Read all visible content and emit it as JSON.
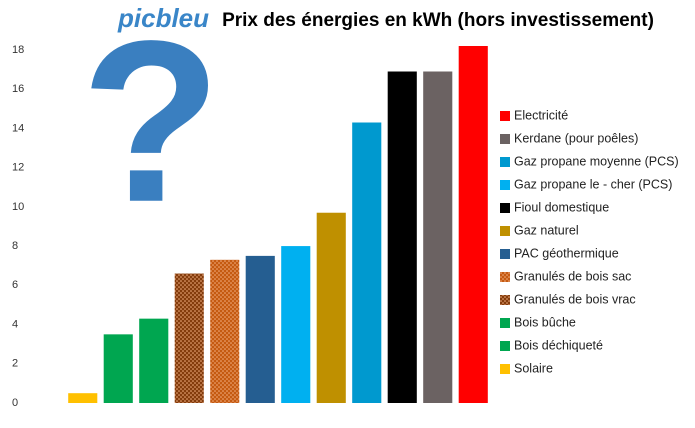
{
  "chart_data": {
    "type": "bar",
    "title": "Prix des énergies en kWh (hors investissement)",
    "logo": "picbleu",
    "annotation": "?",
    "categories": [
      null,
      null,
      null,
      null,
      null,
      null,
      null,
      null,
      null,
      null,
      null,
      null
    ],
    "ylim": [
      0,
      18.2
    ],
    "yticks": [
      0,
      2,
      4,
      6,
      8,
      10,
      12,
      14,
      16,
      18
    ],
    "grid": false,
    "legend": "right",
    "series": [
      {
        "name": "Electricité",
        "color": "#ff0000",
        "values": [
          null,
          null,
          null,
          null,
          null,
          null,
          null,
          null,
          null,
          null,
          null,
          18.2
        ]
      },
      {
        "name": "Kerdane (pour poêles)",
        "color": "#6b6262",
        "values": [
          null,
          null,
          null,
          null,
          null,
          null,
          null,
          null,
          null,
          null,
          16.9,
          null
        ]
      },
      {
        "name": "Gaz propane moyenne (PCS)",
        "color": "#0099cf",
        "values": [
          null,
          null,
          null,
          null,
          null,
          null,
          null,
          null,
          14.3,
          null,
          null,
          null
        ]
      },
      {
        "name": "Gaz propane le - cher  (PCS)",
        "color": "#00b0f0",
        "values": [
          null,
          null,
          null,
          null,
          null,
          null,
          8.0,
          null,
          null,
          null,
          null,
          null
        ]
      },
      {
        "name": "Fioul domestique",
        "color": "#000000",
        "values": [
          null,
          null,
          null,
          null,
          null,
          null,
          null,
          null,
          null,
          16.9,
          null,
          null
        ]
      },
      {
        "name": "Gaz naturel",
        "color": "#bf9000",
        "values": [
          null,
          null,
          null,
          null,
          null,
          null,
          null,
          9.7,
          null,
          null,
          null,
          null
        ]
      },
      {
        "name": "PAC géothermique",
        "color": "#255e91",
        "values": [
          null,
          null,
          null,
          null,
          null,
          7.5,
          null,
          null,
          null,
          null,
          null,
          null
        ]
      },
      {
        "name": "Granulés de bois sac",
        "color": "#c55a11",
        "pattern": "dots",
        "values": [
          null,
          null,
          null,
          null,
          7.3,
          null,
          null,
          null,
          null,
          null,
          null,
          null
        ]
      },
      {
        "name": "Granulés de bois vrac",
        "color": "#843c0c",
        "pattern": "dots",
        "values": [
          null,
          null,
          null,
          6.6,
          null,
          null,
          null,
          null,
          null,
          null,
          null,
          null
        ]
      },
      {
        "name": "Bois bûche",
        "color": "#00a650",
        "values": [
          null,
          null,
          4.3,
          null,
          null,
          null,
          null,
          null,
          null,
          null,
          null,
          null
        ]
      },
      {
        "name": "Bois déchiqueté",
        "color": "#00a650",
        "values": [
          null,
          3.5,
          null,
          null,
          null,
          null,
          null,
          null,
          null,
          null,
          null,
          null
        ]
      },
      {
        "name": "Solaire",
        "color": "#ffc000",
        "values": [
          0.5,
          null,
          null,
          null,
          null,
          null,
          null,
          null,
          null,
          null,
          null,
          null
        ]
      }
    ]
  }
}
